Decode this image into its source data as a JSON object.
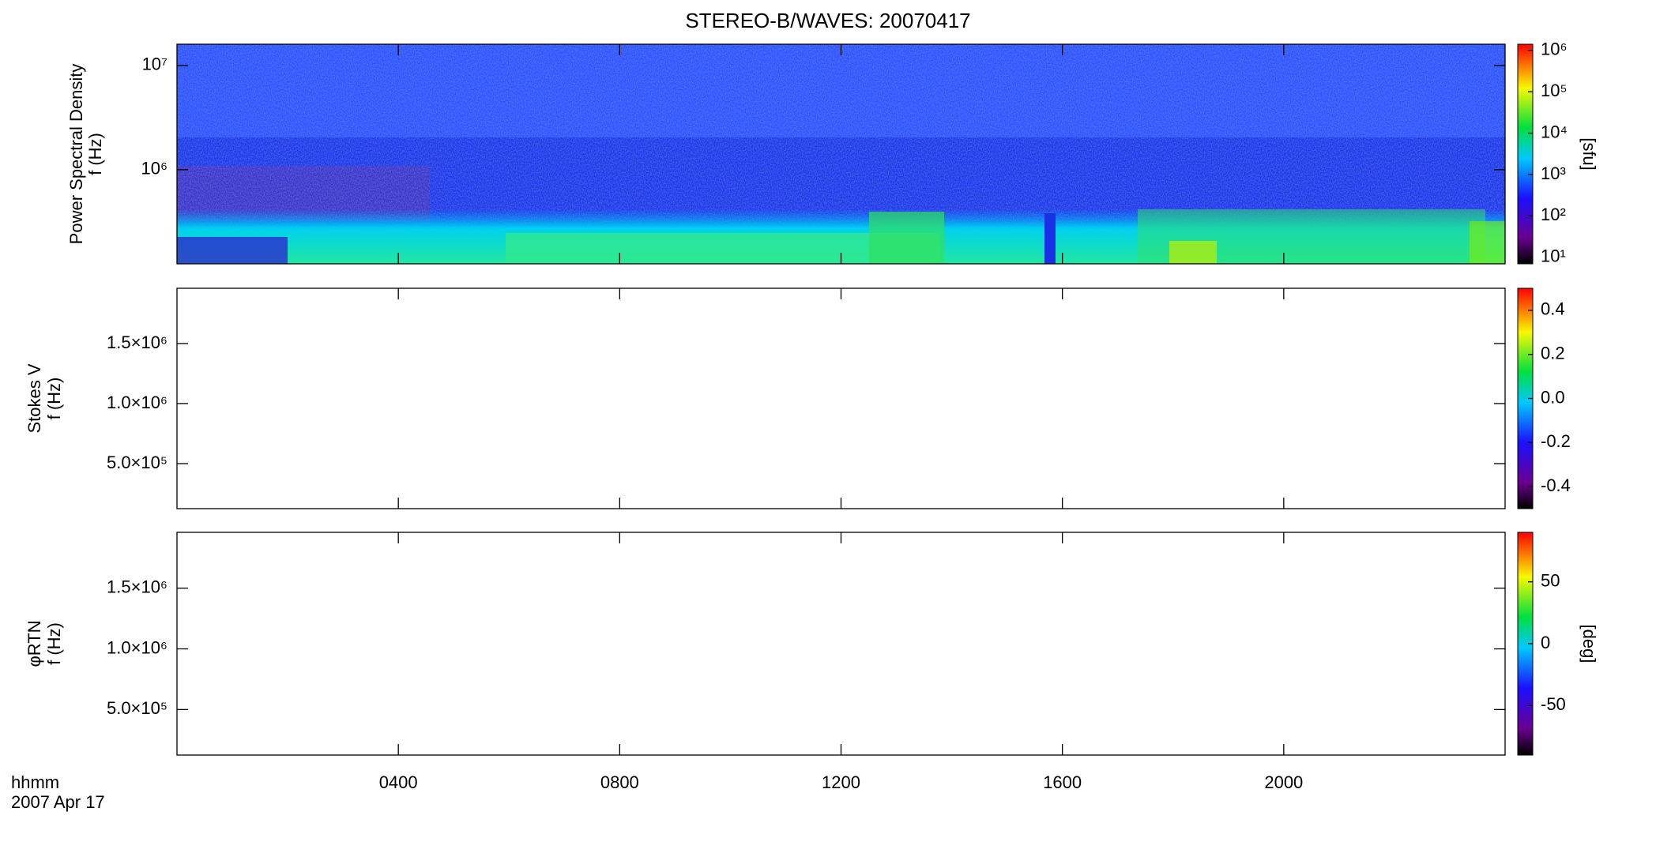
{
  "title": "STEREO-B/WAVES: 20070417",
  "x_axis": {
    "label": "hhmm",
    "date": "2007 Apr 17",
    "xlim": [
      0,
      24
    ],
    "xticks": [
      {
        "value": 4,
        "label": "0400"
      },
      {
        "value": 8,
        "label": "0800"
      },
      {
        "value": 12,
        "label": "1200"
      },
      {
        "value": 16,
        "label": "1600"
      },
      {
        "value": 20,
        "label": "2000"
      }
    ]
  },
  "chart_data": [
    {
      "type": "spectrogram",
      "ylabel": [
        "Power Spectral Density",
        "f (Hz)"
      ],
      "log_y": true,
      "ylim": [
        125000,
        16000000
      ],
      "yticks": [
        {
          "value": 1000000,
          "label": "10⁶"
        },
        {
          "value": 10000000,
          "label": "10⁷"
        }
      ],
      "colorbar": {
        "log": true,
        "lim": [
          7,
          1400000
        ],
        "label": "[sfu]",
        "ticks": [
          {
            "value": 10,
            "label": "10¹"
          },
          {
            "value": 100,
            "label": "10²"
          },
          {
            "value": 1000,
            "label": "10³"
          },
          {
            "value": 10000,
            "label": "10⁴"
          },
          {
            "value": 100000,
            "label": "10⁵"
          },
          {
            "value": 1000000,
            "label": "10⁶"
          }
        ]
      }
    },
    {
      "type": "spectrogram",
      "ylabel": [
        "Stokes V",
        "f (Hz)"
      ],
      "log_y": false,
      "ylim": [
        125000,
        1960000
      ],
      "yticks": [
        {
          "value": 500000,
          "label": "5.0×10⁵"
        },
        {
          "value": 1000000,
          "label": "1.0×10⁶"
        },
        {
          "value": 1500000,
          "label": "1.5×10⁶"
        }
      ],
      "colorbar": {
        "log": false,
        "lim": [
          -0.5,
          0.5
        ],
        "ticks": [
          {
            "value": -0.4,
            "label": "-0.4"
          },
          {
            "value": -0.2,
            "label": "-0.2"
          },
          {
            "value": 0,
            "label": "0.0"
          },
          {
            "value": 0.2,
            "label": "0.2"
          },
          {
            "value": 0.4,
            "label": "0.4"
          }
        ]
      }
    },
    {
      "type": "spectrogram",
      "ylabel": [
        "φRTN",
        "f (Hz)"
      ],
      "log_y": false,
      "ylim": [
        125000,
        1960000
      ],
      "yticks": [
        {
          "value": 500000,
          "label": "5.0×10⁵"
        },
        {
          "value": 1000000,
          "label": "1.0×10⁶"
        },
        {
          "value": 1500000,
          "label": "1.5×10⁶"
        }
      ],
      "colorbar": {
        "log": false,
        "lim": [
          -90,
          90
        ],
        "label": "[deg]",
        "ticks": [
          -50,
          0,
          50
        ]
      }
    }
  ]
}
